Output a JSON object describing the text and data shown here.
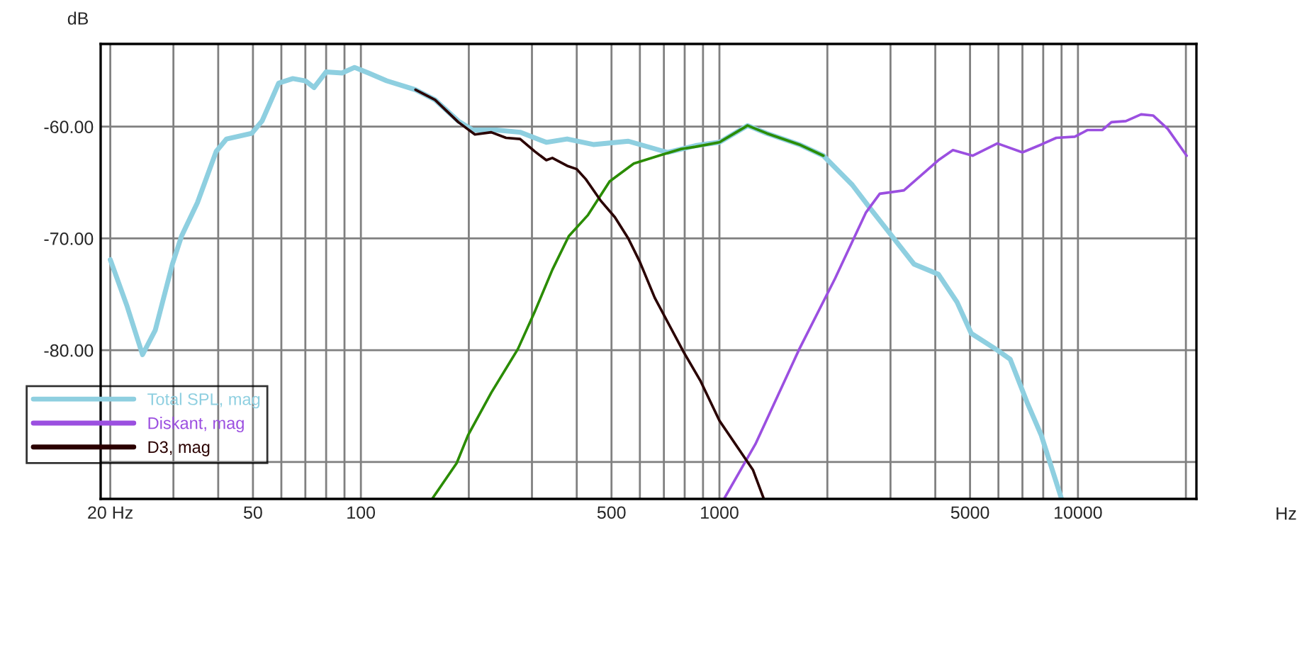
{
  "chart_data": {
    "type": "line",
    "xlabel": "Hz",
    "ylabel": "dB",
    "log": "x",
    "grid": true,
    "legend": "bottom left",
    "line_style": "solid",
    "marker": "none",
    "xlim": [
      18.8,
      21400
    ],
    "ylim": [
      -93.3,
      -52.6
    ],
    "xticks": [
      {
        "value": 20,
        "label": "20 Hz"
      },
      {
        "value": 30,
        "label": null
      },
      {
        "value": 40,
        "label": null
      },
      50,
      {
        "value": 60,
        "label": null
      },
      {
        "value": 70,
        "label": null
      },
      {
        "value": 80,
        "label": null
      },
      {
        "value": 90,
        "label": null
      },
      100,
      {
        "value": 200,
        "label": null
      },
      {
        "value": 300,
        "label": null
      },
      {
        "value": 400,
        "label": null
      },
      500,
      {
        "value": 600,
        "label": null
      },
      {
        "value": 700,
        "label": null
      },
      {
        "value": 800,
        "label": null
      },
      {
        "value": 900,
        "label": null
      },
      1000,
      {
        "value": 2000,
        "label": null
      },
      {
        "value": 3000,
        "label": null
      },
      {
        "value": 4000,
        "label": null
      },
      5000,
      {
        "value": 6000,
        "label": null
      },
      {
        "value": 7000,
        "label": null
      },
      {
        "value": 8000,
        "label": null
      },
      {
        "value": 9000,
        "label": null
      },
      10000,
      {
        "value": 20000,
        "label": null
      }
    ],
    "yticks": [
      {
        "value": -60,
        "label": "-60.00"
      },
      {
        "value": -70,
        "label": "-70.00"
      },
      {
        "value": -80,
        "label": "-80.00"
      },
      {
        "value": -90,
        "label": null
      }
    ],
    "series": [
      {
        "name": "Total SPL, mag",
        "color": "#8ecfe0",
        "x": [
          20,
          22.3,
          24.6,
          26.7,
          29.8,
          31.6,
          35,
          39.5,
          42.2,
          49.6,
          53,
          59,
          64.6,
          70,
          74,
          80,
          88.6,
          96,
          105,
          118,
          142,
          161,
          187,
          205,
          239,
          278,
          329,
          376,
          445,
          557,
          716,
          857,
          1000,
          1198,
          1356,
          1670,
          1950,
          2346,
          2646,
          3100,
          3490,
          4080,
          4600,
          5040,
          5900,
          6470,
          7200,
          7900,
          9000
        ],
        "values": [
          -71.9,
          -76.1,
          -80.4,
          -78.2,
          -72.3,
          -69.8,
          -66.8,
          -62.2,
          -61.1,
          -60.6,
          -59.5,
          -56.1,
          -55.7,
          -55.9,
          -56.5,
          -55.1,
          -55.2,
          -54.7,
          -55.2,
          -55.9,
          -56.7,
          -57.6,
          -59.5,
          -60.3,
          -60.3,
          -60.5,
          -61.4,
          -61.1,
          -61.6,
          -61.3,
          -62.3,
          -61.7,
          -61.4,
          -59.9,
          -60.6,
          -61.6,
          -62.6,
          -65.2,
          -67.4,
          -70.2,
          -72.3,
          -73.2,
          -75.7,
          -78.5,
          -79.9,
          -80.8,
          -84.6,
          -87.6,
          -93.3
        ]
      },
      {
        "name": "Diskant, mag",
        "color": "#9b4fe0",
        "x": [
          1030,
          1260,
          1670,
          2100,
          2560,
          2800,
          3270,
          4080,
          4480,
          5090,
          5960,
          7000,
          7900,
          8700,
          9800,
          10640,
          11700,
          12400,
          13600,
          15000,
          16200,
          17800,
          20100
        ],
        "values": [
          -93.3,
          -88.4,
          -79.9,
          -73.6,
          -67.7,
          -66,
          -65.7,
          -63,
          -62.1,
          -62.6,
          -61.5,
          -62.3,
          -61.6,
          -61,
          -60.9,
          -60.3,
          -60.3,
          -59.6,
          -59.5,
          -58.9,
          -59,
          -60.2,
          -62.6
        ]
      },
      {
        "color": "#2a8c00",
        "x": [
          158,
          185,
          199,
          231,
          274,
          305,
          342,
          380,
          430,
          494,
          577,
          692,
          782,
          857,
          1000,
          1198,
          1356,
          1670,
          1950
        ],
        "values": [
          -93.3,
          -90.1,
          -87.6,
          -83.8,
          -79.9,
          -76.6,
          -72.8,
          -69.8,
          -67.9,
          -64.9,
          -63.3,
          -62.5,
          -62,
          -61.8,
          -61.4,
          -59.9,
          -60.6,
          -61.6,
          -62.6
        ]
      },
      {
        "name": "D3, mag",
        "color": "#2a0000",
        "x": [
          142,
          161,
          187,
          208,
          231,
          254,
          278,
          305,
          329,
          342,
          376,
          400,
          424,
          466,
          511,
          557,
          600,
          660,
          726,
          796,
          884,
          1000,
          1130,
          1240,
          1330
        ],
        "values": [
          -56.7,
          -57.6,
          -59.6,
          -60.7,
          -60.5,
          -61,
          -61.1,
          -62.2,
          -63,
          -62.8,
          -63.5,
          -63.8,
          -64.7,
          -66.6,
          -68.1,
          -70,
          -72.1,
          -75.3,
          -77.8,
          -80.2,
          -82.7,
          -86.3,
          -88.8,
          -90.7,
          -93.3
        ]
      }
    ]
  }
}
